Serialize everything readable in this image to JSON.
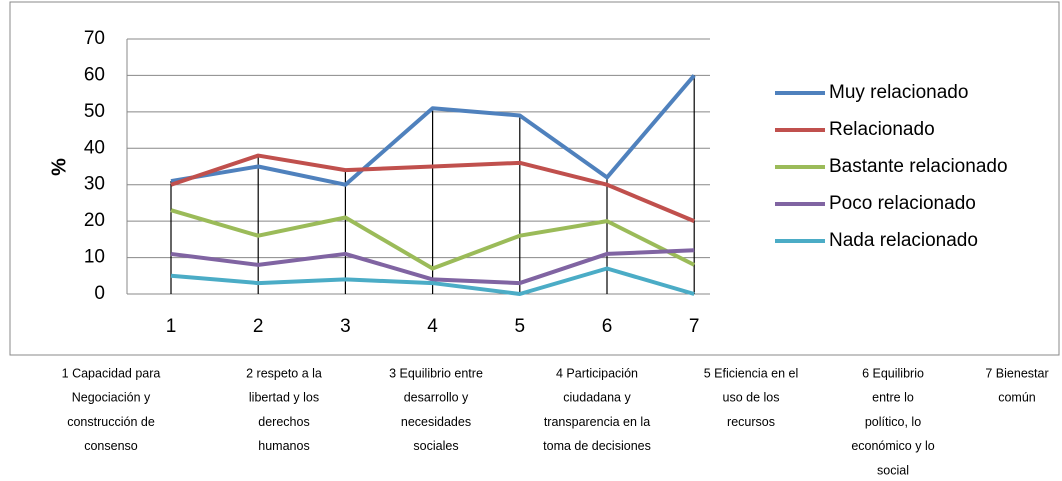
{
  "chart_data": {
    "type": "line",
    "y_label": "%",
    "categories": [
      "1",
      "2",
      "3",
      "4",
      "5",
      "6",
      "7"
    ],
    "series": [
      {
        "name": "Muy relacionado",
        "color": "#4f81bd",
        "values": [
          31,
          35,
          30,
          51,
          49,
          32,
          60
        ]
      },
      {
        "name": "Relacionado",
        "color": "#c0504d",
        "values": [
          30,
          38,
          34,
          35,
          36,
          30,
          20
        ]
      },
      {
        "name": "Bastante relacionado",
        "color": "#9bbb59",
        "values": [
          23,
          16,
          21,
          7,
          16,
          20,
          8
        ]
      },
      {
        "name": "Poco relacionado",
        "color": "#8064a2",
        "values": [
          11,
          8,
          11,
          4,
          3,
          11,
          12
        ]
      },
      {
        "name": "Nada relacionado",
        "color": "#4bacc6",
        "values": [
          5,
          3,
          4,
          3,
          0,
          7,
          0
        ]
      }
    ],
    "ylim": [
      0,
      70
    ],
    "yticks": [
      0,
      10,
      20,
      30,
      40,
      50,
      60,
      70
    ],
    "grid": true,
    "legend": "right",
    "category_descriptions": [
      [
        "1 Capacidad para",
        "Negociación  y",
        "construcción de",
        "consenso"
      ],
      [
        "2 respeto a la",
        "libertad y los",
        "derechos",
        "humanos"
      ],
      [
        "3 Equilibrio entre",
        "desarrollo y",
        "necesidades",
        "sociales"
      ],
      [
        "4 Participación",
        "ciudadana y",
        "transparencia en la",
        "toma de decisiones"
      ],
      [
        "5 Eficiencia en el",
        "uso de los",
        "recursos"
      ],
      [
        "6 Equilibrio",
        "entre lo",
        "político, lo",
        "económico y lo",
        "social"
      ],
      [
        "7 Bienestar",
        "común"
      ]
    ]
  }
}
